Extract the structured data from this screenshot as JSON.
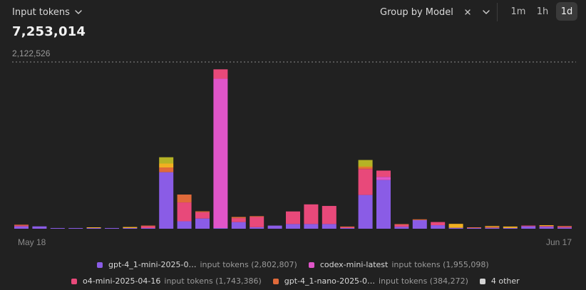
{
  "header": {
    "metric_label": "Input tokens",
    "total": "7,253,014",
    "group_by_label": "Group by Model",
    "time_ranges": [
      "1m",
      "1h",
      "1d"
    ],
    "active_range": "1d"
  },
  "icons": {
    "metric_dropdown": "chevron-down-icon",
    "clear_group": "close-icon",
    "group_dropdown": "chevron-down-icon"
  },
  "colors": {
    "gpt-4_1-mini-2025-0…": "#8a5ce6",
    "codex-mini-latest": "#e055c9",
    "o4-mini-2025-04-16": "#e8497a",
    "gpt-4_1-nano-2025-0…": "#e06a3a",
    "4 other": "#d4d4d4",
    "other_amber": "#f0b020",
    "other_olive": "#b5b325"
  },
  "chart_data": {
    "type": "bar",
    "stacked": true,
    "reference_line": 2122526,
    "reference_label": "2,122,526",
    "x_tick_labels": [
      "May 18",
      "Jun 17"
    ],
    "ylim": [
      0,
      2122526
    ],
    "series": [
      {
        "name": "gpt-4_1-mini-2025-0…",
        "values": [
          30000,
          30000,
          4000,
          4000,
          3000,
          3000,
          3000,
          8000,
          720000,
          95000,
          130000,
          4000,
          85000,
          20000,
          40000,
          60000,
          60000,
          60000,
          8000,
          430000,
          620000,
          25000,
          110000,
          45000,
          12000,
          5000,
          12000,
          10000,
          30000,
          25000,
          15000
        ]
      },
      {
        "name": "codex-mini-latest",
        "values": [
          0,
          0,
          0,
          0,
          0,
          0,
          0,
          0,
          0,
          0,
          0,
          1900000,
          0,
          0,
          0,
          0,
          0,
          0,
          0,
          0,
          40000,
          0,
          0,
          0,
          0,
          0,
          0,
          0,
          0,
          0,
          0
        ]
      },
      {
        "name": "o4-mini-2025-04-16",
        "values": [
          12000,
          0,
          0,
          0,
          0,
          0,
          0,
          22000,
          0,
          240000,
          80000,
          120000,
          50000,
          130000,
          0,
          160000,
          250000,
          230000,
          10000,
          330000,
          80000,
          25000,
          0,
          40000,
          0,
          0,
          0,
          0,
          10000,
          10000,
          10000
        ]
      },
      {
        "name": "gpt-4_1-nano-2025-0…",
        "values": [
          5000,
          0,
          0,
          0,
          0,
          0,
          0,
          8000,
          60000,
          100000,
          12000,
          0,
          15000,
          10000,
          0,
          0,
          0,
          0,
          3000,
          25000,
          0,
          5000,
          10000,
          0,
          0,
          5000,
          12000,
          0,
          0,
          0,
          8000
        ]
      },
      {
        "name": "4 other",
        "values": [
          0,
          0,
          0,
          0,
          5000,
          0,
          13000,
          0,
          130000,
          0,
          0,
          0,
          0,
          0,
          0,
          0,
          0,
          0,
          0,
          90000,
          0,
          0,
          0,
          0,
          50000,
          0,
          10000,
          18000,
          0,
          10000,
          0
        ]
      }
    ],
    "other_breakdown": {
      "amber": [
        0,
        0,
        0,
        0,
        5000,
        0,
        13000,
        0,
        50000,
        0,
        0,
        0,
        0,
        0,
        0,
        0,
        0,
        0,
        0,
        10000,
        0,
        0,
        0,
        0,
        50000,
        0,
        10000,
        18000,
        0,
        10000,
        0
      ],
      "olive": [
        0,
        0,
        0,
        0,
        0,
        0,
        0,
        0,
        80000,
        0,
        0,
        0,
        0,
        0,
        0,
        0,
        0,
        0,
        0,
        80000,
        0,
        0,
        0,
        0,
        0,
        0,
        0,
        0,
        0,
        0,
        0
      ]
    },
    "legend": [
      {
        "name": "gpt-4_1-mini-2025-0…",
        "label": "input tokens (2,802,807)"
      },
      {
        "name": "codex-mini-latest",
        "label": "input tokens (1,955,098)"
      },
      {
        "name": "o4-mini-2025-04-16",
        "label": "input tokens (1,743,386)"
      },
      {
        "name": "gpt-4_1-nano-2025-0…",
        "label": "input tokens (384,272)"
      },
      {
        "name": "4 other",
        "label": ""
      }
    ]
  }
}
